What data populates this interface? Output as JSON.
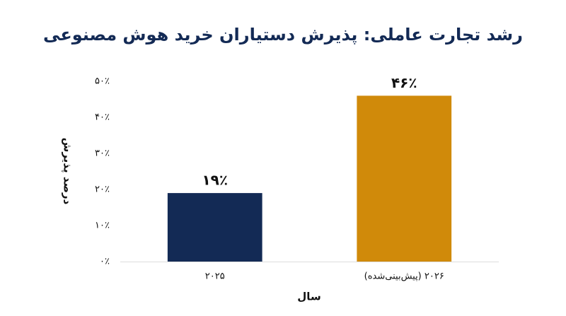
{
  "chart_data": {
    "type": "bar",
    "title": "رشد تجارت عاملی: پذیرش دستیاران خرید هوش مصنوعی",
    "x_label": "سال",
    "y_label": "درصد پذیرش",
    "categories": [
      "۲۰۲۵",
      "۲۰۲۶ (پیش‌بینی‌شده)"
    ],
    "values": [
      19,
      46
    ],
    "value_labels": [
      "۱۹٪",
      "۴۶٪"
    ],
    "colors": [
      "#132a55",
      "#d08a0a"
    ],
    "ylim": [
      0,
      50
    ],
    "yticks": [
      {
        "value": 0,
        "label": "۰٪"
      },
      {
        "value": 10,
        "label": "۱۰٪"
      },
      {
        "value": 20,
        "label": "۲۰٪"
      },
      {
        "value": 30,
        "label": "۳۰٪"
      },
      {
        "value": 40,
        "label": "۴۰٪"
      },
      {
        "value": 50,
        "label": "۵۰٪"
      }
    ]
  }
}
